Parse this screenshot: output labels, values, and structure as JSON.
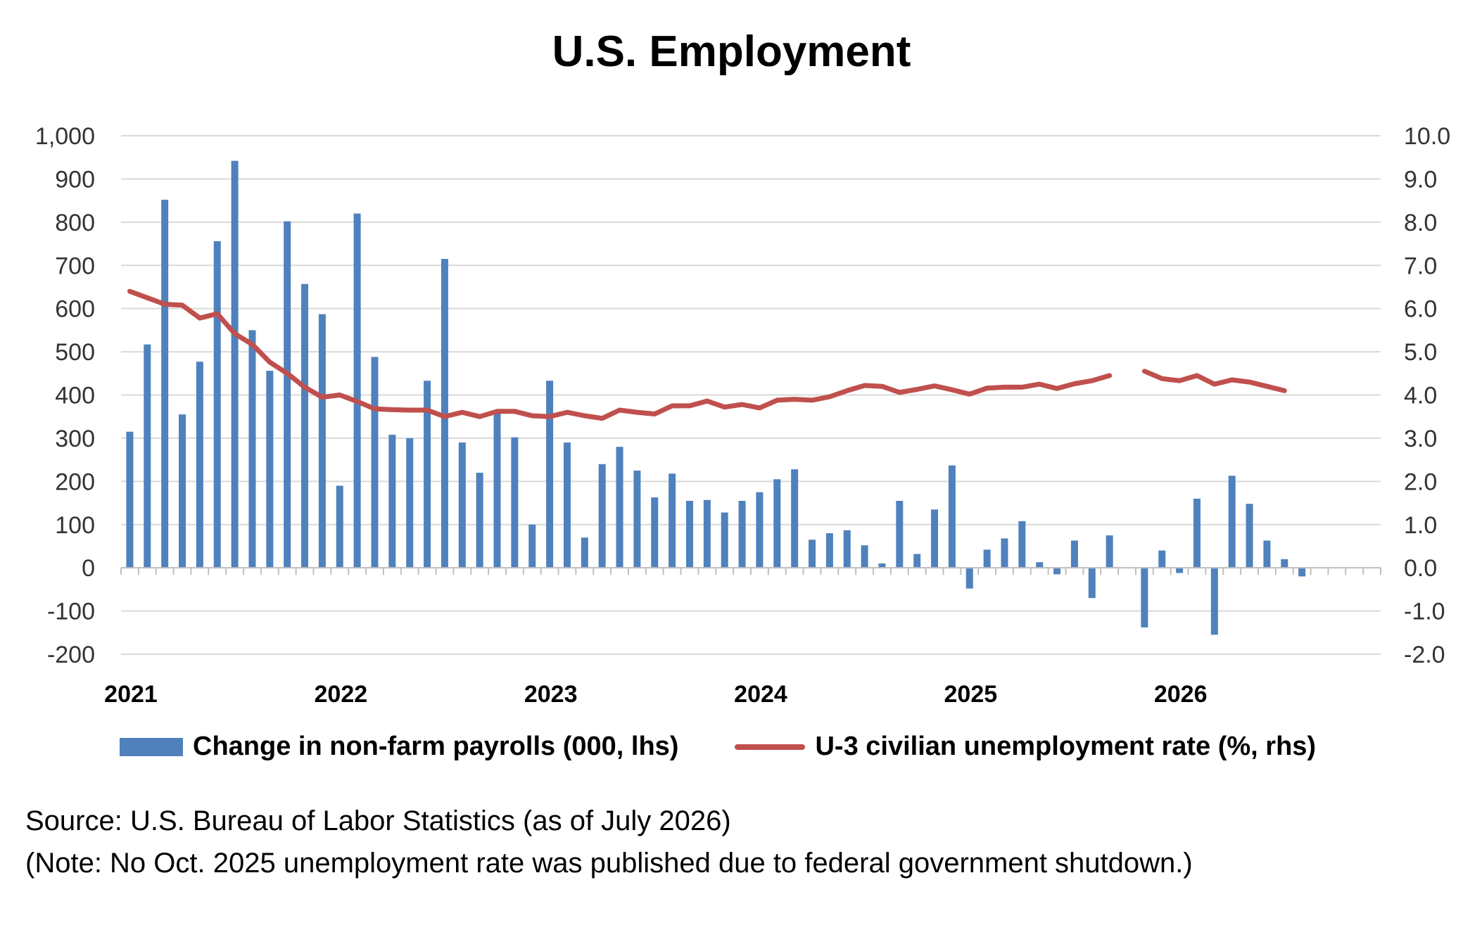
{
  "title": "U.S. Employment",
  "colors": {
    "bar": "#4f81bd",
    "line": "#c0504d",
    "grid": "#d9d9d9"
  },
  "legend": {
    "bars": "Change in non-farm payrolls (000, lhs)",
    "line": "U-3 civilian unemployment rate (%, rhs)"
  },
  "notes": {
    "source": "Source: U.S. Bureau of Labor Statistics (as of July 2026)",
    "shutdown": "(Note: No Oct. 2025 unemployment rate was published due to federal government shutdown.)"
  },
  "chart_data": {
    "type": "bar+line",
    "title": "U.S. Employment",
    "x_tick_labels": [
      "2021",
      "2022",
      "2023",
      "2024",
      "2025",
      "2026"
    ],
    "left_axis": {
      "range": [
        -200,
        1000
      ],
      "ticks": [
        "1,000",
        "900",
        "800",
        "700",
        "600",
        "500",
        "400",
        "300",
        "200",
        "100",
        "0",
        "-100",
        "-200"
      ]
    },
    "right_axis": {
      "range": [
        -2.0,
        10.0
      ],
      "ticks": [
        "10.0",
        "9.0",
        "8.0",
        "7.0",
        "6.0",
        "5.0",
        "4.0",
        "3.0",
        "2.0",
        "1.0",
        "0.0",
        "-1.0",
        "-2.0"
      ]
    },
    "grid": true,
    "legend_position": "bottom",
    "months": [
      "2021-01",
      "2021-02",
      "2021-03",
      "2021-04",
      "2021-05",
      "2021-06",
      "2021-07",
      "2021-08",
      "2021-09",
      "2021-10",
      "2021-11",
      "2021-12",
      "2022-01",
      "2022-02",
      "2022-03",
      "2022-04",
      "2022-05",
      "2022-06",
      "2022-07",
      "2022-08",
      "2022-09",
      "2022-10",
      "2022-11",
      "2022-12",
      "2023-01",
      "2023-02",
      "2023-03",
      "2023-04",
      "2023-05",
      "2023-06",
      "2023-07",
      "2023-08",
      "2023-09",
      "2023-10",
      "2023-11",
      "2023-12",
      "2024-01",
      "2024-02",
      "2024-03",
      "2024-04",
      "2024-05",
      "2024-06",
      "2024-07",
      "2024-08",
      "2024-09",
      "2024-10",
      "2024-11",
      "2024-12",
      "2025-01",
      "2025-02",
      "2025-03",
      "2025-04",
      "2025-05",
      "2025-06",
      "2025-07",
      "2025-08",
      "2025-09",
      "2025-10",
      "2025-11",
      "2025-12",
      "2026-01",
      "2026-02",
      "2026-03",
      "2026-04",
      "2026-05",
      "2026-06",
      "2026-07",
      "2026-08",
      "2026-09",
      "2026-10",
      "2026-11",
      "2026-12"
    ],
    "series": [
      {
        "name": "Change in non-farm payrolls (000, lhs)",
        "type": "bar",
        "axis": "left",
        "values": [
          315,
          517,
          852,
          355,
          477,
          756,
          942,
          550,
          456,
          802,
          657,
          587,
          190,
          820,
          488,
          308,
          300,
          433,
          715,
          290,
          220,
          360,
          302,
          100,
          433,
          290,
          70,
          240,
          280,
          225,
          163,
          218,
          155,
          157,
          128,
          155,
          175,
          205,
          228,
          65,
          80,
          87,
          52,
          10,
          155,
          32,
          135,
          237,
          -48,
          42,
          68,
          108,
          13,
          -15,
          63,
          -70,
          75,
          null,
          -138,
          40,
          -12,
          160,
          -155,
          213,
          148,
          63,
          20,
          -20,
          null,
          null,
          null,
          null
        ]
      },
      {
        "name": "U-3 civilian unemployment rate (%, rhs)",
        "type": "line",
        "axis": "right",
        "values": [
          6.4,
          6.25,
          6.1,
          6.08,
          5.78,
          5.88,
          5.42,
          5.17,
          4.76,
          4.5,
          4.18,
          3.95,
          4.0,
          3.85,
          3.68,
          3.66,
          3.65,
          3.65,
          3.5,
          3.6,
          3.5,
          3.62,
          3.62,
          3.52,
          3.5,
          3.6,
          3.52,
          3.46,
          3.65,
          3.6,
          3.56,
          3.75,
          3.75,
          3.86,
          3.72,
          3.78,
          3.7,
          3.88,
          3.9,
          3.88,
          3.96,
          4.1,
          4.22,
          4.2,
          4.06,
          4.13,
          4.21,
          4.12,
          4.02,
          4.16,
          4.18,
          4.18,
          4.25,
          4.15,
          4.26,
          4.33,
          4.45,
          null,
          4.55,
          4.38,
          4.33,
          4.45,
          4.25,
          4.35,
          4.3,
          4.2,
          4.1,
          null,
          null,
          null,
          null,
          null
        ]
      }
    ]
  }
}
